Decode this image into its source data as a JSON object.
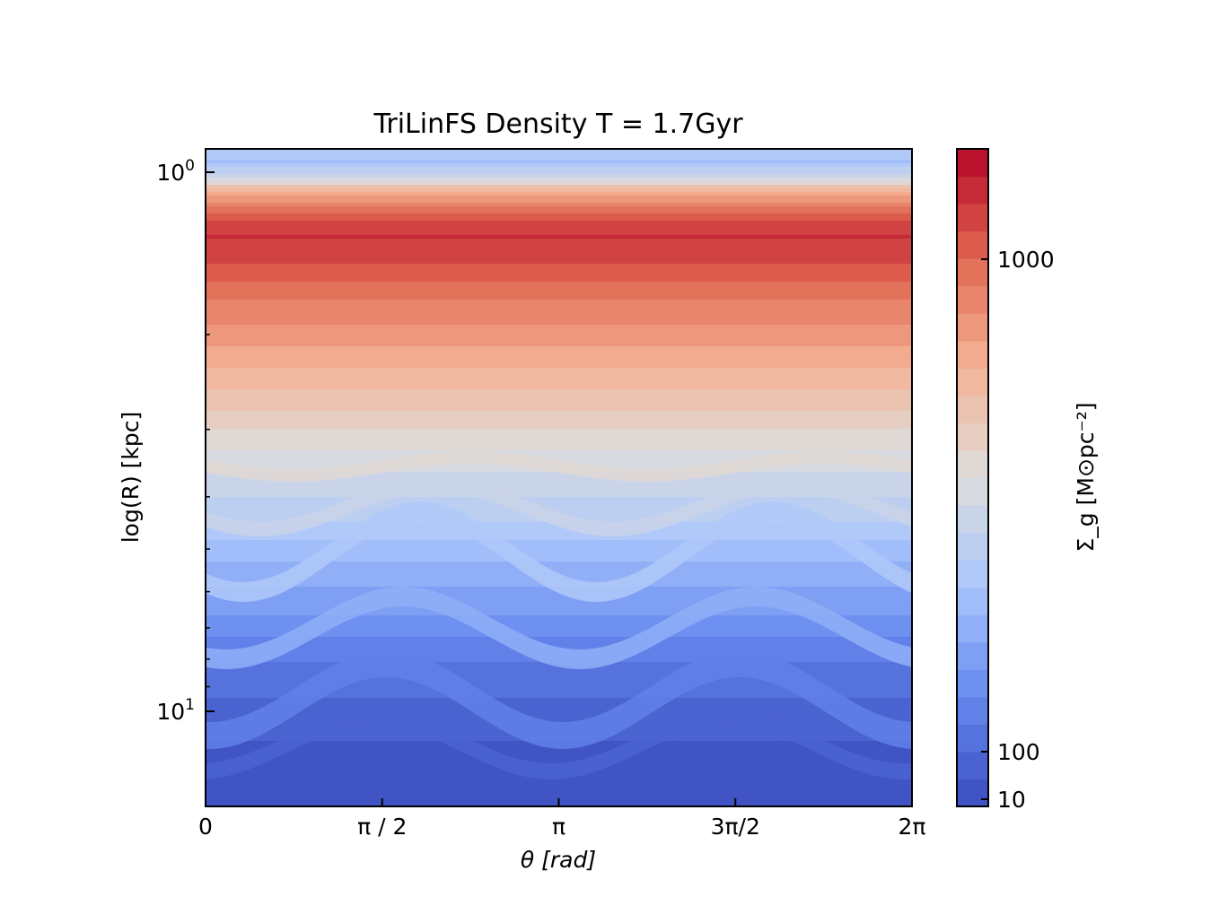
{
  "chart_data": {
    "type": "heatmap",
    "title": "TriLinFS Density T = 1.7Gyr",
    "xlabel": "θ [rad]",
    "ylabel": "log(R) [kpc]",
    "colorbar_label": "Σ_g [M⊙pc⁻²]",
    "x_range": [
      0,
      6.2832
    ],
    "y_scale": "log",
    "x_ticks": [
      {
        "value": 0,
        "label": "0"
      },
      {
        "value": 1.5708,
        "label": "π / 2"
      },
      {
        "value": 3.1416,
        "label": "π"
      },
      {
        "value": 4.7124,
        "label": "3π/2"
      },
      {
        "value": 6.2832,
        "label": "2π"
      }
    ],
    "y_ticks": [
      {
        "value": 1,
        "base": "10",
        "exp": "0"
      },
      {
        "value": 10,
        "base": "10",
        "exp": "1"
      }
    ],
    "colorbar_ticks": [
      {
        "value": 1000,
        "label": "1000"
      },
      {
        "value": 100,
        "label": "100"
      },
      {
        "value": 10,
        "label": "10"
      }
    ],
    "colormap": "coolwarm",
    "colormap_stops": [
      "#3b4cc0",
      "#6688ee",
      "#a9c6fd",
      "#dddddd",
      "#f4b497",
      "#e16852",
      "#b40426"
    ],
    "level_count": 24,
    "grid": false
  }
}
